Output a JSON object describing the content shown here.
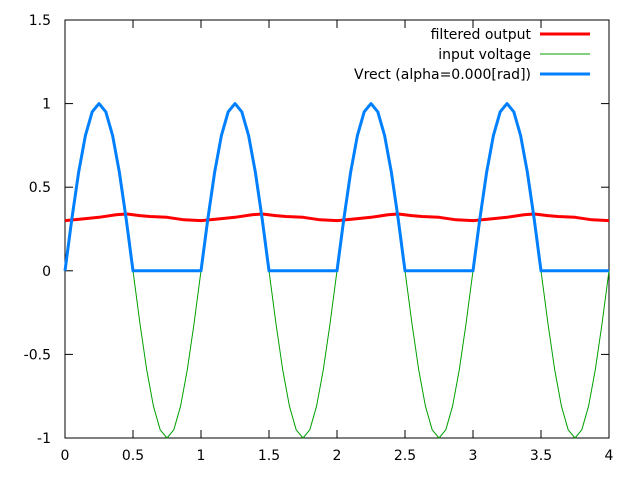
{
  "chart_data": {
    "type": "line",
    "xlabel": "",
    "ylabel": "",
    "xlim": [
      0,
      4
    ],
    "ylim": [
      -1,
      1.5
    ],
    "xticks": [
      0,
      0.5,
      1,
      1.5,
      2,
      2.5,
      3,
      3.5,
      4
    ],
    "xtick_labels": [
      "0",
      "0.5",
      "1",
      "1.5",
      "2",
      "2.5",
      "3",
      "3.5",
      "4"
    ],
    "yticks": [
      -1,
      -0.5,
      0,
      0.5,
      1,
      1.5
    ],
    "ytick_labels": [
      "-1",
      "-0.5",
      "0",
      "0.5",
      "1",
      "1.5"
    ],
    "grid": false,
    "legend_position": "top-right",
    "series": [
      {
        "name": "filtered output",
        "color": "#ff0000",
        "x": [
          0,
          0.125,
          0.25,
          0.375,
          0.45,
          0.55,
          0.625,
          0.75,
          0.875,
          1.0,
          1.125,
          1.25,
          1.375,
          1.45,
          1.55,
          1.625,
          1.75,
          1.875,
          2.0,
          2.125,
          2.25,
          2.375,
          2.45,
          2.55,
          2.625,
          2.75,
          2.875,
          3.0,
          3.125,
          3.25,
          3.375,
          3.45,
          3.55,
          3.625,
          3.75,
          3.875,
          4.0
        ],
        "y": [
          0.3,
          0.31,
          0.32,
          0.335,
          0.34,
          0.33,
          0.325,
          0.32,
          0.305,
          0.3,
          0.31,
          0.32,
          0.335,
          0.34,
          0.33,
          0.325,
          0.32,
          0.305,
          0.3,
          0.31,
          0.32,
          0.335,
          0.34,
          0.33,
          0.325,
          0.32,
          0.305,
          0.3,
          0.31,
          0.32,
          0.335,
          0.34,
          0.33,
          0.325,
          0.32,
          0.305,
          0.3
        ]
      },
      {
        "name": "input voltage",
        "color": "#00a000",
        "x": [
          0,
          0.05,
          0.1,
          0.15,
          0.2,
          0.25,
          0.3,
          0.35,
          0.4,
          0.45,
          0.5,
          0.55,
          0.6,
          0.65,
          0.7,
          0.75,
          0.8,
          0.85,
          0.9,
          0.95,
          1.0,
          1.05,
          1.1,
          1.15,
          1.2,
          1.25,
          1.3,
          1.35,
          1.4,
          1.45,
          1.5,
          1.55,
          1.6,
          1.65,
          1.7,
          1.75,
          1.8,
          1.85,
          1.9,
          1.95,
          2.0,
          2.05,
          2.1,
          2.15,
          2.2,
          2.25,
          2.3,
          2.35,
          2.4,
          2.45,
          2.5,
          2.55,
          2.6,
          2.65,
          2.7,
          2.75,
          2.8,
          2.85,
          2.9,
          2.95,
          3.0,
          3.05,
          3.1,
          3.15,
          3.2,
          3.25,
          3.3,
          3.35,
          3.4,
          3.45,
          3.5,
          3.55,
          3.6,
          3.65,
          3.7,
          3.75,
          3.8,
          3.85,
          3.9,
          3.95,
          4.0
        ],
        "y": [
          0,
          0.309,
          0.588,
          0.809,
          0.951,
          1,
          0.951,
          0.809,
          0.588,
          0.309,
          0,
          -0.309,
          -0.588,
          -0.809,
          -0.951,
          -1,
          -0.951,
          -0.809,
          -0.588,
          -0.309,
          0,
          0.309,
          0.588,
          0.809,
          0.951,
          1,
          0.951,
          0.809,
          0.588,
          0.309,
          0,
          -0.309,
          -0.588,
          -0.809,
          -0.951,
          -1,
          -0.951,
          -0.809,
          -0.588,
          -0.309,
          0,
          0.309,
          0.588,
          0.809,
          0.951,
          1,
          0.951,
          0.809,
          0.588,
          0.309,
          0,
          -0.309,
          -0.588,
          -0.809,
          -0.951,
          -1,
          -0.951,
          -0.809,
          -0.588,
          -0.309,
          0,
          0.309,
          0.588,
          0.809,
          0.951,
          1,
          0.951,
          0.809,
          0.588,
          0.309,
          0,
          -0.309,
          -0.588,
          -0.809,
          -0.951,
          -1,
          -0.951,
          -0.809,
          -0.588,
          -0.309,
          0
        ]
      },
      {
        "name": "Vrect (alpha=0.000[rad])",
        "color": "#0080ff",
        "x": [
          0,
          0.05,
          0.1,
          0.15,
          0.2,
          0.25,
          0.3,
          0.35,
          0.4,
          0.45,
          0.5,
          1.0,
          1.05,
          1.1,
          1.15,
          1.2,
          1.25,
          1.3,
          1.35,
          1.4,
          1.45,
          1.5,
          2.0,
          2.05,
          2.1,
          2.15,
          2.2,
          2.25,
          2.3,
          2.35,
          2.4,
          2.45,
          2.5,
          3.0,
          3.05,
          3.1,
          3.15,
          3.2,
          3.25,
          3.3,
          3.35,
          3.4,
          3.45,
          3.5,
          4.0
        ],
        "y": [
          0,
          0.309,
          0.588,
          0.809,
          0.951,
          1,
          0.951,
          0.809,
          0.588,
          0.309,
          0,
          0,
          0.309,
          0.588,
          0.809,
          0.951,
          1,
          0.951,
          0.809,
          0.588,
          0.309,
          0,
          0,
          0.309,
          0.588,
          0.809,
          0.951,
          1,
          0.951,
          0.809,
          0.588,
          0.309,
          0,
          0,
          0.309,
          0.588,
          0.809,
          0.951,
          1,
          0.951,
          0.809,
          0.588,
          0.309,
          0,
          0
        ]
      }
    ]
  }
}
